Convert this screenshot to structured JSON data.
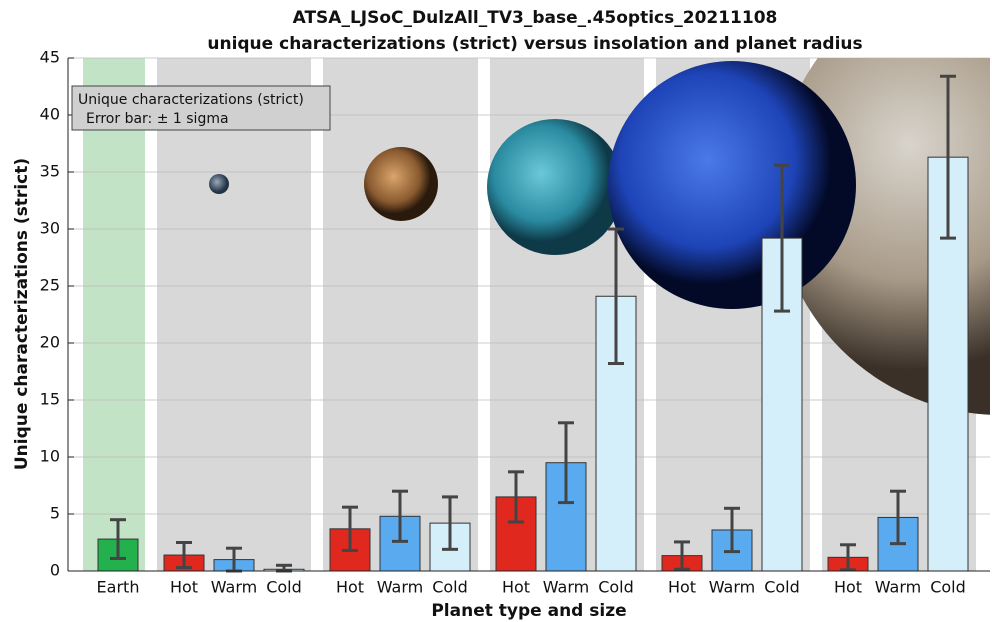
{
  "chart_data": {
    "type": "bar",
    "title": "ATSA_LJSoC_DulzAll_TV3_base_.45optics_20211108",
    "subtitle": "unique characterizations (strict) versus insolation and planet  radius",
    "x_label": "Planet type and size",
    "y_label": "Unique characterizations (strict)",
    "categories": [
      "Earth",
      "Hot",
      "Warm",
      "Cold",
      "Hot",
      "Warm",
      "Cold",
      "Hot",
      "Warm",
      "Cold",
      "Hot",
      "Warm",
      "Cold",
      "Hot",
      "Warm",
      "Cold"
    ],
    "values": [
      2.8,
      1.4,
      1.0,
      0.15,
      3.7,
      4.8,
      4.2,
      6.5,
      9.5,
      24.1,
      1.35,
      3.6,
      29.2,
      1.2,
      4.7,
      36.3
    ],
    "errors": [
      1.7,
      1.1,
      1.0,
      0.35,
      1.9,
      2.2,
      2.3,
      2.2,
      3.5,
      5.9,
      1.2,
      1.9,
      6.4,
      1.1,
      2.3,
      7.1
    ],
    "colors": [
      "#22b14c",
      "#e0281e",
      "#5aaaf0",
      "#d4eefa",
      "#e0281e",
      "#5aaaf0",
      "#d4eefa",
      "#e0281e",
      "#5aaaf0",
      "#d4eefa",
      "#e0281e",
      "#5aaaf0",
      "#d4eefa",
      "#e0281e",
      "#5aaaf0",
      "#d4eefa"
    ],
    "ylim": [
      0,
      45
    ],
    "yticks": [
      0,
      5,
      10,
      15,
      20,
      25,
      30,
      35,
      40,
      45
    ],
    "grid": true,
    "legend": {
      "title": "Unique characterizations (strict)",
      "note": "Error bar: ± 1 sigma",
      "position": "upper left"
    }
  }
}
